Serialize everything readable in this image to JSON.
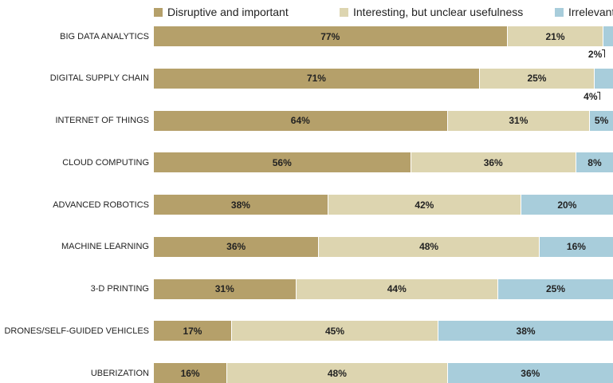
{
  "chart_data": {
    "type": "bar",
    "orientation": "horizontal",
    "stacked": true,
    "legend_placement": "top",
    "categories": [
      "BIG DATA ANALYTICS",
      "DIGITAL SUPPLY CHAIN",
      "INTERNET OF THINGS",
      "CLOUD COMPUTING",
      "ADVANCED ROBOTICS",
      "MACHINE LEARNING",
      "3-D PRINTING",
      "DRONES/SELF-GUIDED VEHICLES",
      "UBERIZATION"
    ],
    "series": [
      {
        "name": "Disruptive and important",
        "color": "#b5a06a",
        "values": [
          77,
          71,
          64,
          56,
          38,
          36,
          31,
          17,
          16
        ]
      },
      {
        "name": "Interesting, but unclear usefulness",
        "color": "#ddd5b0",
        "values": [
          21,
          25,
          31,
          36,
          42,
          48,
          44,
          45,
          48
        ]
      },
      {
        "name": "Irrelevant",
        "color": "#a8cddb",
        "values": [
          2,
          4,
          5,
          8,
          20,
          16,
          25,
          38,
          36
        ]
      }
    ],
    "value_suffix": "%",
    "xlim": [
      0,
      100
    ]
  }
}
